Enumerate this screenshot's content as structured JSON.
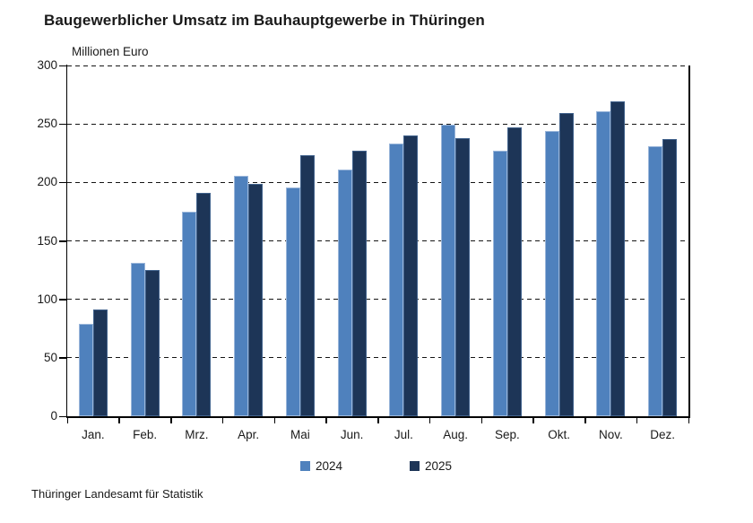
{
  "source": "Thüringer Landesamt für Statistik",
  "chart_data": {
    "type": "bar",
    "title": "Baugewerblicher Umsatz im Bauhauptgewerbe in Thüringen",
    "ylabel": "Millionen Euro",
    "xlabel": "",
    "categories": [
      "Jan.",
      "Feb.",
      "Mrz.",
      "Apr.",
      "Mai",
      "Jun.",
      "Jul.",
      "Aug.",
      "Sep.",
      "Okt.",
      "Nov.",
      "Dez."
    ],
    "series": [
      {
        "name": "2024",
        "color": "#4f81bd",
        "edge": "#9ab6da",
        "values": [
          79,
          131,
          175,
          206,
          196,
          211,
          233,
          249,
          227,
          244,
          261,
          231
        ]
      },
      {
        "name": "2025",
        "color": "#1d3557",
        "edge": "#41628c",
        "values": [
          91,
          125,
          191,
          199,
          223,
          227,
          240,
          238,
          247,
          259,
          269,
          237
        ]
      }
    ],
    "ylim": [
      0,
      300
    ],
    "yticks": [
      0,
      50,
      100,
      150,
      200,
      250,
      300
    ],
    "grid": "dashed horizontal",
    "legend_position": "bottom-center",
    "axis_color": "#000000",
    "text_color": "#1a1a1a"
  }
}
